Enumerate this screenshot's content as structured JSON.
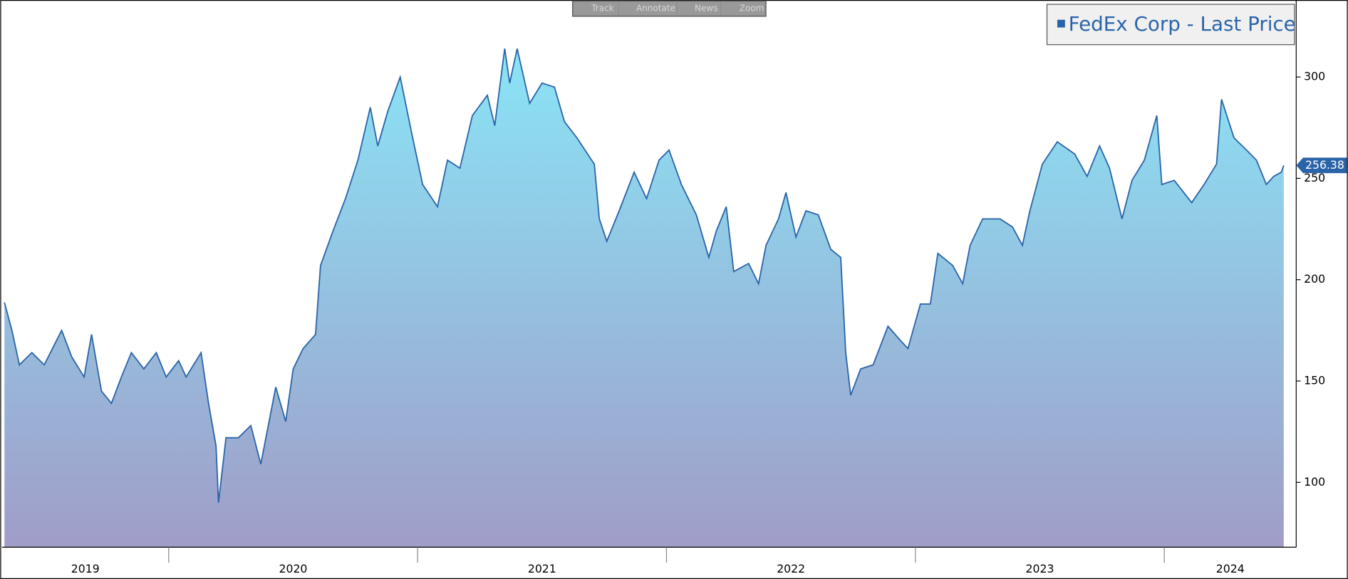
{
  "toolbar": [
    "Track",
    "Annotate",
    "News",
    "Zoom"
  ],
  "chart_data": {
    "type": "area",
    "series": [
      {
        "name": "FedEx Corp - Last Price",
        "color": "#2a64a8",
        "x": [
          2019.34,
          2019.37,
          2019.4,
          2019.45,
          2019.5,
          2019.57,
          2019.61,
          2019.66,
          2019.69,
          2019.73,
          2019.77,
          2019.81,
          2019.85,
          2019.9,
          2019.95,
          2019.99,
          2020.04,
          2020.07,
          2020.13,
          2020.16,
          2020.19,
          2020.2,
          2020.23,
          2020.28,
          2020.33,
          2020.37,
          2020.43,
          2020.47,
          2020.5,
          2020.54,
          2020.59,
          2020.61,
          2020.66,
          2020.71,
          2020.76,
          2020.81,
          2020.84,
          2020.88,
          2020.93,
          2020.98,
          2021.02,
          2021.08,
          2021.12,
          2021.17,
          2021.22,
          2021.28,
          2021.31,
          2021.35,
          2021.37,
          2021.4,
          2021.45,
          2021.5,
          2021.55,
          2021.59,
          2021.64,
          2021.71,
          2021.73,
          2021.76,
          2021.81,
          2021.87,
          2021.92,
          2021.97,
          2022.01,
          2022.06,
          2022.12,
          2022.17,
          2022.2,
          2022.24,
          2022.27,
          2022.33,
          2022.37,
          2022.4,
          2022.45,
          2022.48,
          2022.52,
          2022.56,
          2022.61,
          2022.66,
          2022.7,
          2022.72,
          2022.74,
          2022.78,
          2022.83,
          2022.89,
          2022.94,
          2022.97,
          2023.02,
          2023.06,
          2023.09,
          2023.15,
          2023.19,
          2023.22,
          2023.27,
          2023.34,
          2023.39,
          2023.43,
          2023.46,
          2023.51,
          2023.57,
          2023.64,
          2023.69,
          2023.74,
          2023.78,
          2023.83,
          2023.87,
          2023.92,
          2023.97,
          2023.99,
          2024.04,
          2024.11,
          2024.16,
          2024.21,
          2024.23,
          2024.28,
          2024.33,
          2024.37,
          2024.41,
          2024.44,
          2024.47,
          2024.48
        ],
        "values": [
          188.8,
          175,
          158,
          164,
          158,
          175,
          162,
          152,
          173,
          145,
          139,
          152,
          164,
          156,
          164,
          152,
          160,
          152,
          164,
          139,
          118,
          90,
          122,
          122,
          128,
          109,
          147,
          130,
          156,
          166,
          173,
          207,
          224,
          240,
          259,
          285,
          266,
          283,
          300,
          270,
          247,
          236,
          259,
          255,
          281,
          291,
          276,
          314,
          297,
          314,
          287,
          297,
          295,
          278,
          270,
          257,
          230,
          219,
          234,
          253,
          240,
          259,
          264,
          247,
          232,
          211,
          224,
          236,
          204,
          208,
          198,
          217,
          230,
          243,
          221,
          234,
          232,
          215,
          211,
          164,
          143,
          156,
          158,
          177,
          170,
          166,
          188,
          188,
          213,
          207,
          198,
          217,
          230,
          230,
          226,
          217,
          234,
          257,
          268,
          262,
          251,
          266,
          255,
          230,
          249,
          259,
          281,
          247,
          249,
          238,
          247,
          257,
          289,
          270,
          264,
          259,
          247,
          251,
          253,
          256.38
        ]
      }
    ],
    "fill_top": "#8ae4f6",
    "fill_bottom": "#a09dc8",
    "xlim": [
      2019.33,
      2024.53
    ],
    "xticks": [
      2020,
      2021,
      2022,
      2023,
      2024
    ],
    "x_labels": [
      "2019",
      "2020",
      "2021",
      "2022",
      "2023",
      "2024"
    ],
    "ylim": [
      68,
      338
    ],
    "yticks": [
      100,
      150,
      200,
      250,
      300
    ],
    "legend": "top-right"
  }
}
